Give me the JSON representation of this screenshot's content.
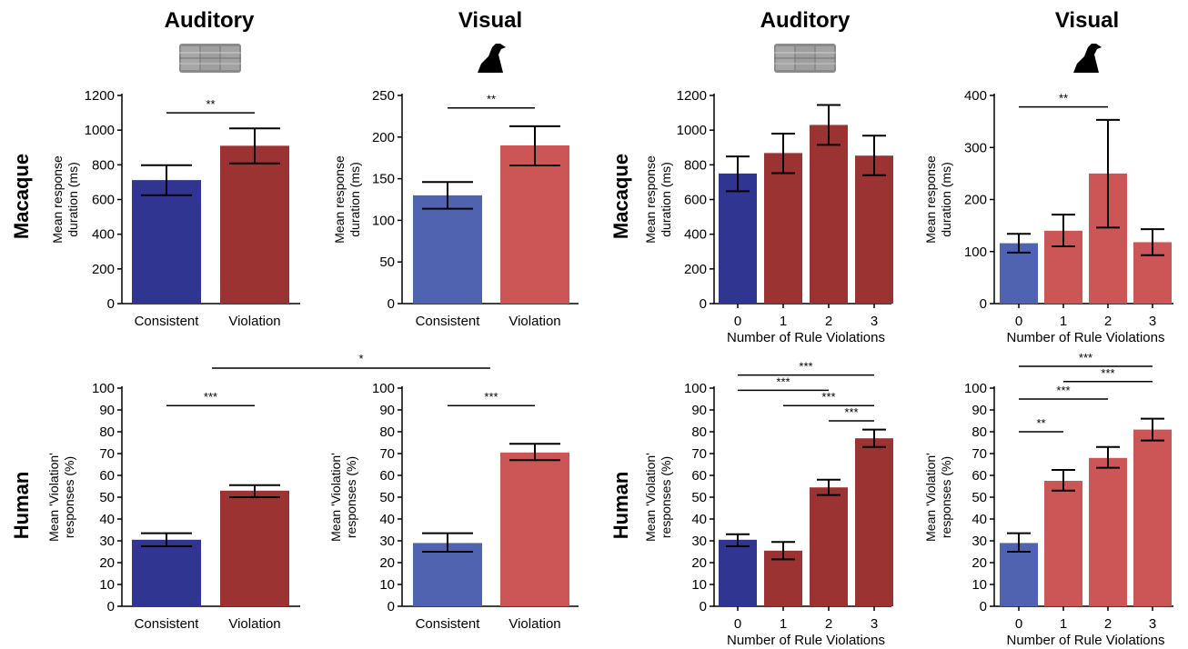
{
  "columns": [
    {
      "title": "Auditory",
      "icon": "sound-spectrogram-icon"
    },
    {
      "title": "Visual",
      "icon": "shape-silhouette-icon"
    },
    {
      "title": "Auditory",
      "icon": "sound-spectrogram-icon"
    },
    {
      "title": "Visual",
      "icon": "shape-silhouette-icon"
    }
  ],
  "rows": [
    "Macaque",
    "Human"
  ],
  "colors": {
    "auditory_consistent": "#2f3590",
    "auditory_violation": "#9b3333",
    "visual_consistent": "#5063b0",
    "visual_violation": "#cc5555"
  },
  "between_panel_significance": "*",
  "chart_data": [
    {
      "type": "bar",
      "row": "Macaque",
      "modality": "Auditory",
      "categories": [
        "Consistent",
        "Violation"
      ],
      "values": [
        712,
        910
      ],
      "error": [
        [
          625,
          798
        ],
        [
          808,
          1010
        ]
      ],
      "ylabel_lines": [
        "Mean response",
        "duration (ms)"
      ],
      "xlabel": "",
      "ylim": [
        0,
        1200
      ],
      "yticks": [
        0,
        200,
        400,
        600,
        800,
        1000,
        1200
      ],
      "colors": [
        "#2f3590",
        "#9b3333"
      ],
      "significance": [
        {
          "from": 0,
          "to": 1,
          "label": "**",
          "y": 1100
        }
      ]
    },
    {
      "type": "bar",
      "row": "Macaque",
      "modality": "Visual",
      "categories": [
        "Consistent",
        "Violation"
      ],
      "values": [
        130,
        190
      ],
      "error": [
        [
          114,
          146
        ],
        [
          166,
          213
        ]
      ],
      "ylabel_lines": [
        "Mean response",
        "duration (ms)"
      ],
      "xlabel": "",
      "ylim": [
        0,
        250
      ],
      "yticks": [
        0,
        50,
        100,
        150,
        200,
        250
      ],
      "colors": [
        "#5063b0",
        "#cc5555"
      ],
      "significance": [
        {
          "from": 0,
          "to": 1,
          "label": "**",
          "y": 235
        }
      ]
    },
    {
      "type": "bar",
      "row": "Macaque",
      "modality": "Auditory",
      "categories": [
        "0",
        "1",
        "2",
        "3"
      ],
      "values": [
        750,
        868,
        1030,
        853
      ],
      "error": [
        [
          648,
          848
        ],
        [
          752,
          980
        ],
        [
          915,
          1145
        ],
        [
          740,
          968
        ]
      ],
      "ylabel_lines": [
        "Mean response",
        "duration (ms)"
      ],
      "xlabel": "Number of Rule Violations",
      "ylim": [
        0,
        1200
      ],
      "yticks": [
        0,
        200,
        400,
        600,
        800,
        1000,
        1200
      ],
      "colors": [
        "#2f3590",
        "#9b3333",
        "#9b3333",
        "#9b3333"
      ],
      "significance": []
    },
    {
      "type": "bar",
      "row": "Macaque",
      "modality": "Visual",
      "categories": [
        "0",
        "1",
        "2",
        "3"
      ],
      "values": [
        116,
        140,
        250,
        118
      ],
      "error": [
        [
          98,
          134
        ],
        [
          110,
          171
        ],
        [
          146,
          353
        ],
        [
          93,
          143
        ]
      ],
      "ylabel_lines": [
        "Mean response",
        "duration (ms)"
      ],
      "xlabel": "Number of Rule Violations",
      "ylim": [
        0,
        400
      ],
      "yticks": [
        0,
        100,
        200,
        300,
        400
      ],
      "colors": [
        "#5063b0",
        "#cc5555",
        "#cc5555",
        "#cc5555"
      ],
      "significance": [
        {
          "from": 0,
          "to": 2,
          "label": "**",
          "y": 378
        }
      ]
    },
    {
      "type": "bar",
      "row": "Human",
      "modality": "Auditory",
      "categories": [
        "Consistent",
        "Violation"
      ],
      "values": [
        30.5,
        53
      ],
      "error": [
        [
          27.5,
          33.5
        ],
        [
          50,
          55.5
        ]
      ],
      "ylabel_lines": [
        "Mean 'Violation'",
        "responses (%)"
      ],
      "xlabel": "",
      "ylim": [
        0,
        100
      ],
      "yticks": [
        0,
        10,
        20,
        30,
        40,
        50,
        60,
        70,
        80,
        90,
        100
      ],
      "colors": [
        "#2f3590",
        "#9b3333"
      ],
      "significance": [
        {
          "from": 0,
          "to": 1,
          "label": "***",
          "y": 92
        }
      ]
    },
    {
      "type": "bar",
      "row": "Human",
      "modality": "Visual",
      "categories": [
        "Consistent",
        "Violation"
      ],
      "values": [
        29,
        70.5
      ],
      "error": [
        [
          25,
          33.5
        ],
        [
          67,
          74.5
        ]
      ],
      "ylabel_lines": [
        "Mean 'Violation'",
        "responses (%)"
      ],
      "xlabel": "",
      "ylim": [
        0,
        100
      ],
      "yticks": [
        0,
        10,
        20,
        30,
        40,
        50,
        60,
        70,
        80,
        90,
        100
      ],
      "colors": [
        "#5063b0",
        "#cc5555"
      ],
      "significance": [
        {
          "from": 0,
          "to": 1,
          "label": "***",
          "y": 92
        }
      ]
    },
    {
      "type": "bar",
      "row": "Human",
      "modality": "Auditory",
      "categories": [
        "0",
        "1",
        "2",
        "3"
      ],
      "values": [
        30.5,
        25.5,
        54.5,
        77
      ],
      "error": [
        [
          27.5,
          33
        ],
        [
          21.5,
          29.5
        ],
        [
          51,
          58
        ],
        [
          73,
          81
        ]
      ],
      "ylabel_lines": [
        "Mean 'Violation'",
        "responses (%)"
      ],
      "xlabel": "Number of Rule Violations",
      "ylim": [
        0,
        100
      ],
      "yticks": [
        0,
        10,
        20,
        30,
        40,
        50,
        60,
        70,
        80,
        90,
        100
      ],
      "colors": [
        "#2f3590",
        "#9b3333",
        "#9b3333",
        "#9b3333"
      ],
      "significance": [
        {
          "from": 0,
          "to": 3,
          "label": "***",
          "y": 106
        },
        {
          "from": 0,
          "to": 2,
          "label": "***",
          "y": 99
        },
        {
          "from": 1,
          "to": 3,
          "label": "***",
          "y": 92
        },
        {
          "from": 2,
          "to": 3,
          "label": "***",
          "y": 85
        }
      ]
    },
    {
      "type": "bar",
      "row": "Human",
      "modality": "Visual",
      "categories": [
        "0",
        "1",
        "2",
        "3"
      ],
      "values": [
        29,
        57.5,
        68,
        81
      ],
      "error": [
        [
          25,
          33.5
        ],
        [
          53,
          62.5
        ],
        [
          63.5,
          73
        ],
        [
          76,
          86
        ]
      ],
      "ylabel_lines": [
        "Mean 'Violation'",
        "responses (%)"
      ],
      "xlabel": "Number of Rule Violations",
      "ylim": [
        0,
        100
      ],
      "yticks": [
        0,
        10,
        20,
        30,
        40,
        50,
        60,
        70,
        80,
        90,
        100
      ],
      "colors": [
        "#5063b0",
        "#cc5555",
        "#cc5555",
        "#cc5555"
      ],
      "significance": [
        {
          "from": 0,
          "to": 3,
          "label": "***",
          "y": 110
        },
        {
          "from": 1,
          "to": 3,
          "label": "***",
          "y": 103
        },
        {
          "from": 0,
          "to": 2,
          "label": "***",
          "y": 95
        },
        {
          "from": 0,
          "to": 1,
          "label": "**",
          "y": 80
        }
      ]
    }
  ]
}
